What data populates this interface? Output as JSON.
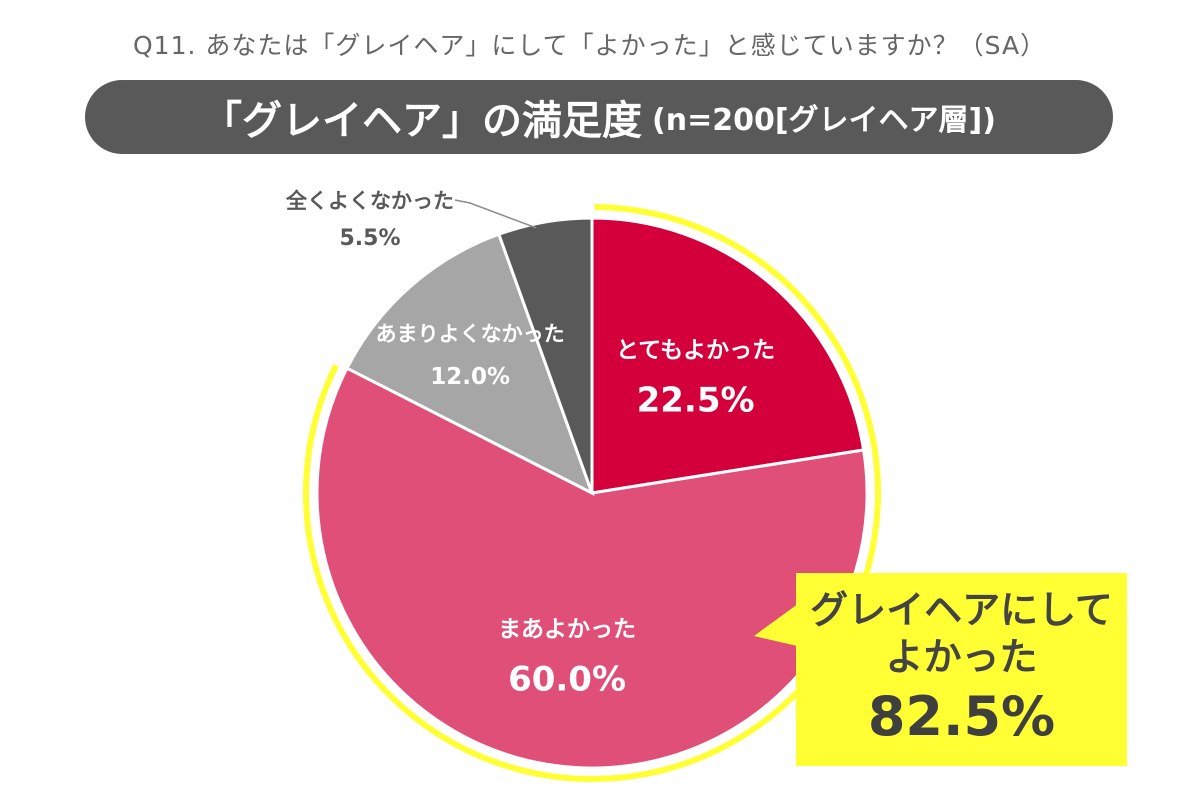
{
  "question": "Q11. あなたは「グレイヘア」にして「よかった」と感じていますか？（SA）",
  "title": {
    "main": "「グレイヘア」の満足度",
    "sub": "(n=200[グレイヘア層])"
  },
  "chart_data": {
    "type": "pie",
    "start_angle_deg": 0,
    "direction": "clockwise",
    "slices": [
      {
        "label": "とてもよかった",
        "value": 22.5,
        "value_label": "22.5%",
        "color": "#d4003b",
        "text_color": "#ffffff"
      },
      {
        "label": "まあよかった",
        "value": 60.0,
        "value_label": "60.0%",
        "color": "#e04f78",
        "text_color": "#ffffff"
      },
      {
        "label": "あまりよくなかった",
        "value": 12.0,
        "value_label": "12.0%",
        "color": "#a6a6a6",
        "text_color": "#ffffff"
      },
      {
        "label": "全くよくなかった",
        "value": 5.5,
        "value_label": "5.5%",
        "color": "#595959",
        "text_color": "#595959"
      }
    ],
    "highlight": {
      "label_lines": [
        "グレイヘアにして",
        "よかった"
      ],
      "value_label": "82.5%",
      "color": "#ffff33"
    }
  },
  "colors": {
    "title_bar": "#595959",
    "highlight_arc": "#ffff33"
  }
}
